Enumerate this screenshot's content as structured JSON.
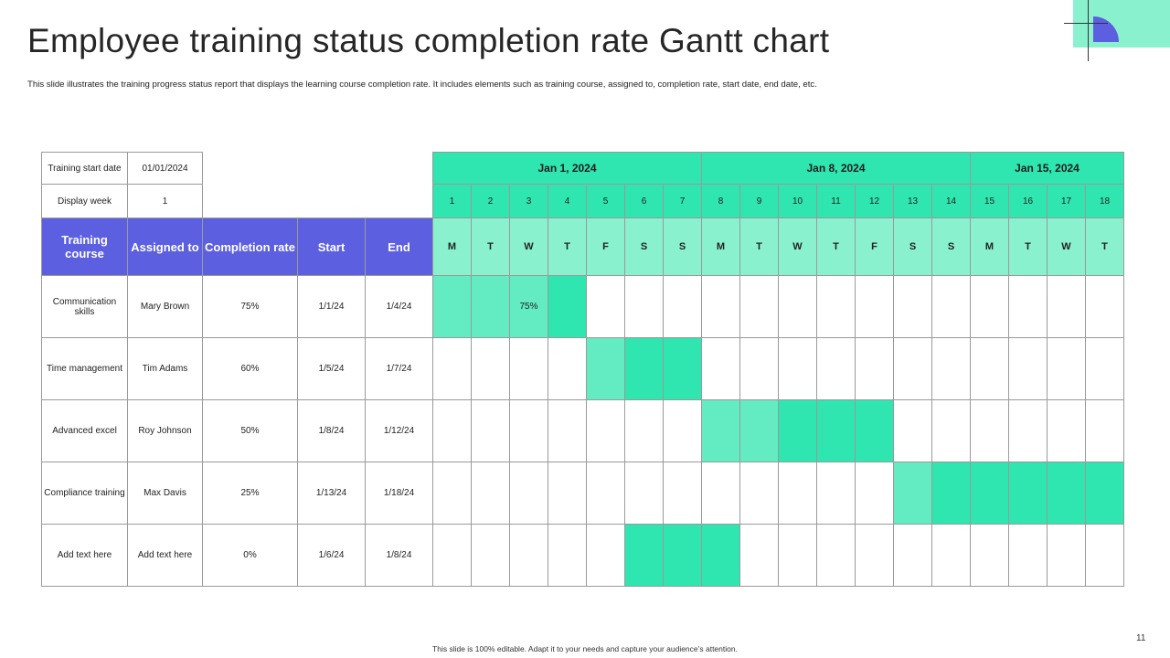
{
  "slide": {
    "title": "Employee training status completion rate Gantt chart",
    "subtitle": "This slide illustrates the training progress status report that displays the learning course completion rate. It includes elements such as training course, assigned to, completion rate, start date, end date, etc.",
    "footer": "This slide is 100% editable. Adapt it to your needs and capture your audience’s attention.",
    "page_number": "11",
    "accent_color": "#5b5fe0",
    "mint_color": "#8af1cf",
    "green_color": "#2fe5b0"
  },
  "info": {
    "start_label": "Training start date",
    "start_value": "01/01/2024",
    "week_label": "Display week",
    "week_value": "1"
  },
  "weeks": [
    "Jan 1, 2024",
    "Jan 8, 2024",
    "Jan 15, 2024"
  ],
  "days": [
    "1",
    "2",
    "3",
    "4",
    "5",
    "6",
    "7",
    "8",
    "9",
    "10",
    "11",
    "12",
    "13",
    "14",
    "15",
    "16",
    "17",
    "18"
  ],
  "weekdays": [
    "M",
    "T",
    "W",
    "T",
    "F",
    "S",
    "S",
    "M",
    "T",
    "W",
    "T",
    "F",
    "S",
    "S",
    "M",
    "T",
    "W",
    "T"
  ],
  "columns": {
    "course": "Training course",
    "assigned": "Assigned to",
    "rate": "Completion rate",
    "start": "Start",
    "end": "End"
  },
  "tasks": [
    {
      "course": "Communication skills",
      "assigned": "Mary Brown",
      "rate": "75%",
      "start": "1/1/24",
      "end": "1/4/24",
      "bar_label": "75%",
      "label_day": 3,
      "light_days": [
        1,
        2,
        3
      ],
      "full_days": [
        4
      ]
    },
    {
      "course": "Time management",
      "assigned": "Tim Adams",
      "rate": "60%",
      "start": "1/5/24",
      "end": "1/7/24",
      "bar_label": "",
      "label_day": 0,
      "light_days": [
        5
      ],
      "full_days": [
        6,
        7
      ]
    },
    {
      "course": "Advanced excel",
      "assigned": "Roy Johnson",
      "rate": "50%",
      "start": "1/8/24",
      "end": "1/12/24",
      "bar_label": "",
      "label_day": 0,
      "light_days": [
        8,
        9
      ],
      "full_days": [
        10,
        11,
        12
      ]
    },
    {
      "course": "Compliance training",
      "assigned": "Max Davis",
      "rate": "25%",
      "start": "1/13/24",
      "end": "1/18/24",
      "bar_label": "",
      "label_day": 0,
      "light_days": [
        13
      ],
      "full_days": [
        14,
        15,
        16,
        17,
        18
      ]
    },
    {
      "course": "Add text here",
      "assigned": "Add text here",
      "rate": "0%",
      "start": "1/6/24",
      "end": "1/8/24",
      "bar_label": "",
      "label_day": 0,
      "light_days": [],
      "full_days": [
        6,
        7,
        8
      ]
    }
  ]
}
